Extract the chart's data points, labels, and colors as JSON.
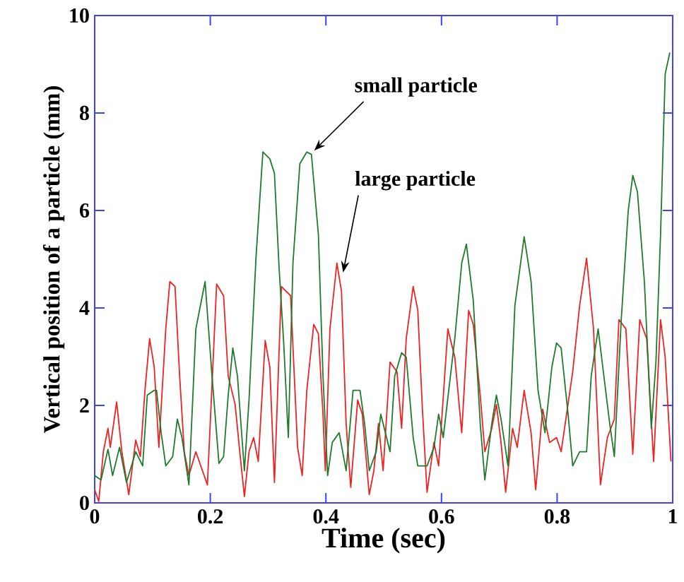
{
  "chart_data": {
    "type": "line",
    "xlabel": "Time (sec)",
    "ylabel": "Vertical position of a particle (mm)",
    "xlim": [
      0,
      1
    ],
    "ylim": [
      0,
      10
    ],
    "xticks": [
      0,
      0.2,
      0.4,
      0.6,
      0.8,
      1
    ],
    "yticks": [
      0,
      2,
      4,
      6,
      8,
      10
    ],
    "grid": false,
    "marker": "none",
    "line_style": "solid",
    "annotations": [
      {
        "text": "small particle",
        "x": 0.37,
        "y": 7.2
      },
      {
        "text": "large particle",
        "x": 0.42,
        "y": 4.7
      }
    ],
    "series": [
      {
        "color": "#ee2222",
        "x": [
          0,
          0.007,
          0.015,
          0.023,
          0.027,
          0.038,
          0.047,
          0.059,
          0.071,
          0.079,
          0.087,
          0.095,
          0.103,
          0.111,
          0.123,
          0.13,
          0.139,
          0.147,
          0.155,
          0.163,
          0.175,
          0.195,
          0.211,
          0.223,
          0.231,
          0.243,
          0.251,
          0.259,
          0.267,
          0.275,
          0.283,
          0.295,
          0.303,
          0.311,
          0.323,
          0.339,
          0.351,
          0.359,
          0.367,
          0.379,
          0.387,
          0.395,
          0.399,
          0.407,
          0.419,
          0.427,
          0.435,
          0.443,
          0.455,
          0.463,
          0.475,
          0.483,
          0.491,
          0.499,
          0.511,
          0.523,
          0.531,
          0.539,
          0.551,
          0.559,
          0.567,
          0.575,
          0.587,
          0.595,
          0.611,
          0.623,
          0.635,
          0.647,
          0.655,
          0.667,
          0.675,
          0.687,
          0.695,
          0.703,
          0.711,
          0.723,
          0.731,
          0.743,
          0.755,
          0.763,
          0.775,
          0.787,
          0.799,
          0.807,
          0.827,
          0.839,
          0.851,
          0.863,
          0.875,
          0.887,
          0.899,
          0.907,
          0.919,
          0.931,
          0.943,
          0.955,
          0.967,
          0.979,
          0.987,
          0.997
        ],
        "values": [
          0.27,
          0.03,
          1.05,
          1.53,
          1.14,
          2.07,
          1.05,
          0.17,
          1.29,
          0.95,
          2.31,
          3.37,
          2.79,
          1.14,
          3.57,
          4.54,
          4.44,
          2.6,
          1.05,
          0.56,
          1.05,
          0.37,
          4.49,
          4.25,
          2.6,
          2.02,
          1.05,
          0.13,
          1.05,
          1.34,
          0.85,
          3.33,
          2.79,
          0.42,
          4.44,
          4.25,
          1.14,
          0.56,
          2.31,
          3.66,
          3.47,
          1.82,
          0.66,
          3.57,
          4.92,
          4.34,
          1.63,
          0.32,
          2.11,
          1.82,
          0.17,
          0.66,
          1.63,
          0.66,
          2.89,
          2.69,
          1.53,
          3.37,
          4.44,
          3.95,
          1.92,
          0.22,
          1.24,
          0.76,
          3.57,
          2.99,
          1.44,
          3.95,
          3.66,
          2.21,
          1.05,
          1.53,
          2.02,
          1.24,
          0.22,
          1.53,
          1.14,
          2.31,
          1.44,
          0.27,
          1.92,
          1.24,
          1.34,
          1.05,
          2.69,
          4.05,
          5.02,
          3.57,
          0.37,
          1.34,
          1.72,
          3.76,
          3.57,
          1.0,
          3.76,
          3.37,
          0.85,
          3.76,
          2.99,
          0.85
        ]
      },
      {
        "color": "#1f7a2e",
        "x": [
          0,
          0.011,
          0.023,
          0.031,
          0.043,
          0.055,
          0.071,
          0.083,
          0.091,
          0.103,
          0.107,
          0.115,
          0.123,
          0.135,
          0.143,
          0.151,
          0.163,
          0.175,
          0.191,
          0.203,
          0.215,
          0.223,
          0.231,
          0.239,
          0.247,
          0.259,
          0.267,
          0.279,
          0.291,
          0.303,
          0.311,
          0.319,
          0.327,
          0.335,
          0.343,
          0.355,
          0.367,
          0.375,
          0.387,
          0.395,
          0.403,
          0.411,
          0.423,
          0.435,
          0.447,
          0.459,
          0.467,
          0.475,
          0.487,
          0.495,
          0.511,
          0.519,
          0.531,
          0.539,
          0.551,
          0.559,
          0.575,
          0.587,
          0.595,
          0.603,
          0.623,
          0.635,
          0.643,
          0.655,
          0.667,
          0.675,
          0.687,
          0.695,
          0.703,
          0.715,
          0.727,
          0.743,
          0.755,
          0.767,
          0.779,
          0.791,
          0.799,
          0.807,
          0.819,
          0.827,
          0.839,
          0.851,
          0.859,
          0.871,
          0.879,
          0.891,
          0.899,
          0.911,
          0.923,
          0.931,
          0.939,
          0.951,
          0.963,
          0.971,
          0.979,
          0.987,
          0.995
        ],
        "values": [
          0.56,
          0.47,
          1.1,
          0.56,
          1.14,
          0.42,
          1.05,
          0.76,
          2.21,
          2.31,
          2.31,
          1.44,
          0.76,
          0.95,
          1.72,
          1.34,
          0.37,
          3.57,
          4.54,
          2.6,
          0.81,
          0.95,
          2.21,
          3.18,
          2.6,
          0.66,
          2.11,
          5.02,
          7.2,
          7.06,
          6.76,
          4.83,
          3.28,
          1.34,
          4.92,
          6.96,
          7.2,
          7.15,
          5.51,
          2.6,
          0.56,
          1.24,
          1.44,
          0.66,
          2.31,
          2.31,
          1.63,
          0.66,
          1.05,
          1.82,
          1.05,
          2.6,
          3.08,
          2.99,
          1.34,
          0.76,
          0.76,
          1.14,
          1.82,
          1.34,
          3.37,
          4.92,
          5.31,
          4.15,
          1.63,
          0.47,
          1.63,
          2.21,
          1.72,
          0.76,
          4.05,
          5.46,
          4.54,
          2.31,
          1.44,
          2.79,
          3.28,
          3.18,
          1.82,
          0.76,
          1.05,
          1.05,
          2.6,
          3.57,
          2.79,
          1.63,
          0.95,
          3.76,
          5.99,
          6.72,
          6.38,
          4.54,
          1.53,
          2.89,
          5.51,
          8.8,
          9.24
        ]
      }
    ]
  }
}
